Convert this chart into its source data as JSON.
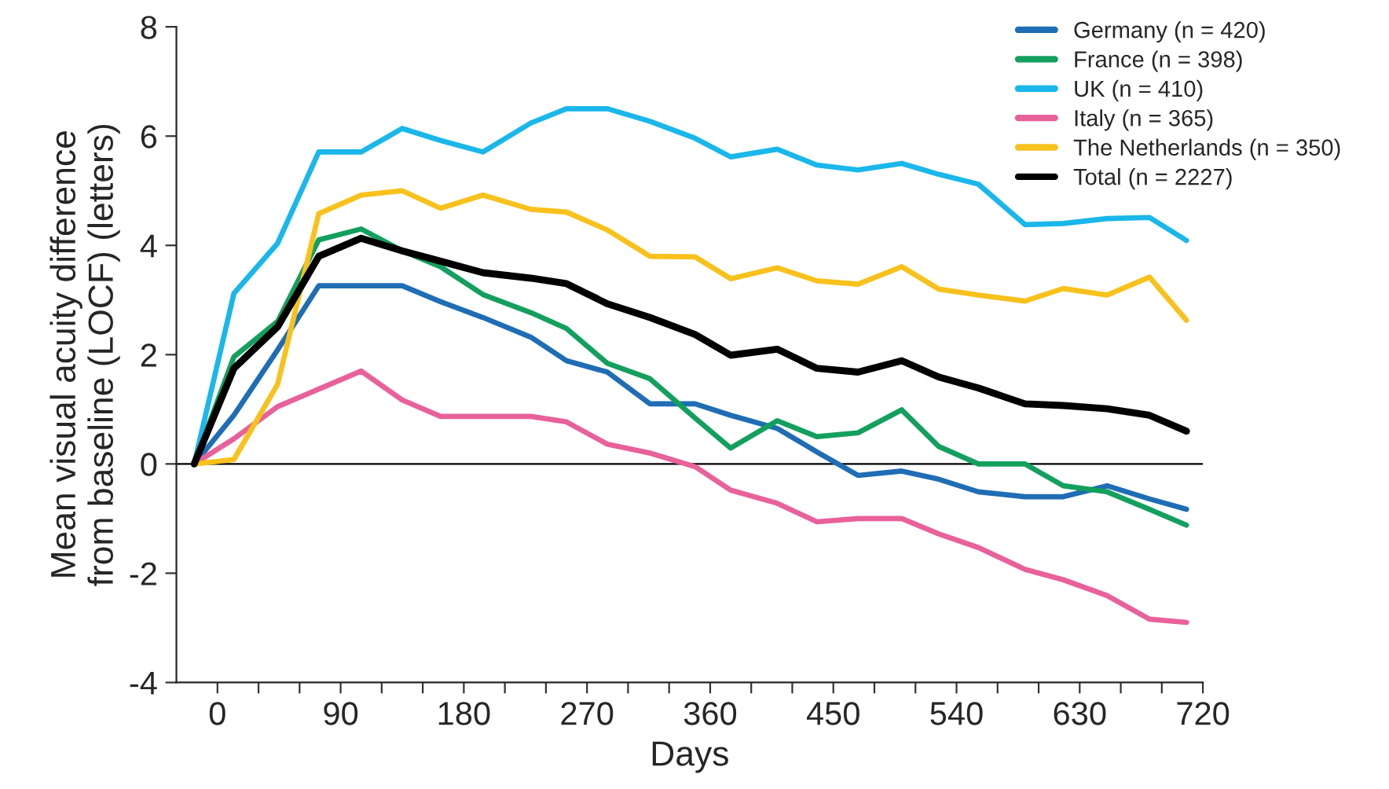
{
  "chart_data": {
    "type": "line",
    "xlabel": "Days",
    "ylabel": "Mean visual acuity difference\nfrom baseline (LOCF) (letters)",
    "x": [
      -17,
      12,
      44,
      74,
      105,
      135,
      163,
      194,
      229,
      255,
      285,
      316,
      349,
      375,
      409,
      438,
      468,
      500,
      527,
      556,
      590,
      618,
      650,
      681,
      708
    ],
    "series": [
      {
        "name": "Germany (n = 420)",
        "color": "#1f6db5",
        "values": [
          0,
          0.89,
          2.09,
          3.26,
          3.26,
          3.26,
          2.97,
          2.68,
          2.32,
          1.89,
          1.68,
          1.1,
          1.1,
          0.89,
          0.65,
          0.22,
          -0.21,
          -0.13,
          -0.28,
          -0.51,
          -0.6,
          -0.6,
          -0.4,
          -0.64,
          -0.83
        ]
      },
      {
        "name": "France (n = 398)",
        "color": "#13a05e",
        "values": [
          0,
          1.96,
          2.61,
          4.1,
          4.3,
          3.9,
          3.61,
          3.1,
          2.77,
          2.48,
          1.84,
          1.56,
          0.84,
          0.29,
          0.79,
          0.5,
          0.57,
          0.99,
          0.32,
          0,
          0,
          -0.4,
          -0.51,
          -0.83,
          -1.12
        ]
      },
      {
        "name": "UK (n = 410)",
        "color": "#1ab7ea",
        "values": [
          0,
          3.12,
          4.04,
          5.71,
          5.71,
          6.14,
          5.92,
          5.71,
          6.24,
          6.5,
          6.5,
          6.27,
          5.96,
          5.62,
          5.76,
          5.47,
          5.38,
          5.5,
          5.3,
          5.12,
          4.38,
          4.4,
          4.49,
          4.51,
          4.09
        ]
      },
      {
        "name": "Italy (n = 365)",
        "color": "#e8619b",
        "values": [
          0,
          0.46,
          1.05,
          1.37,
          1.7,
          1.17,
          0.87,
          0.87,
          0.87,
          0.77,
          0.36,
          0.2,
          -0.05,
          -0.48,
          -0.72,
          -1.06,
          -1.0,
          -1.0,
          -1.28,
          -1.53,
          -1.93,
          -2.12,
          -2.41,
          -2.84,
          -2.9
        ]
      },
      {
        "name": "The Netherlands (n = 350)",
        "color": "#f8c11c",
        "values": [
          0,
          0.08,
          1.46,
          4.58,
          4.92,
          5.0,
          4.68,
          4.92,
          4.66,
          4.61,
          4.28,
          3.8,
          3.79,
          3.39,
          3.59,
          3.35,
          3.29,
          3.61,
          3.2,
          3.09,
          2.98,
          3.21,
          3.09,
          3.42,
          2.63
        ]
      },
      {
        "name": "Total (n = 2227)",
        "color": "#000000",
        "values": [
          0,
          1.75,
          2.51,
          3.8,
          4.13,
          3.9,
          3.71,
          3.5,
          3.4,
          3.3,
          2.93,
          2.68,
          2.37,
          1.99,
          2.1,
          1.75,
          1.68,
          1.89,
          1.59,
          1.39,
          1.1,
          1.07,
          1.01,
          0.89,
          0.6
        ]
      }
    ],
    "xlim": [
      -30,
      720
    ],
    "xticks": [
      0,
      {
        "value": 30,
        "label": null
      },
      {
        "value": 60,
        "label": null
      },
      90,
      {
        "value": 120,
        "label": null
      },
      {
        "value": 150,
        "label": null
      },
      180,
      {
        "value": 210,
        "label": null
      },
      {
        "value": 240,
        "label": null
      },
      270,
      {
        "value": 300,
        "label": null
      },
      {
        "value": 330,
        "label": null
      },
      360,
      {
        "value": 390,
        "label": null
      },
      {
        "value": 420,
        "label": null
      },
      450,
      {
        "value": 480,
        "label": null
      },
      {
        "value": 510,
        "label": null
      },
      540,
      {
        "value": 570,
        "label": null
      },
      {
        "value": 600,
        "label": null
      },
      630,
      {
        "value": 660,
        "label": null
      },
      {
        "value": 690,
        "label": null
      },
      720
    ],
    "ylim": [
      -4,
      8
    ],
    "yticks": [
      {
        "value": -4,
        "label": "-4"
      },
      {
        "value": -2,
        "label": "-2"
      },
      0,
      2,
      4,
      6,
      8
    ],
    "ref_lines": [
      {
        "axis": "y",
        "value": 0,
        "label": null,
        "color": "#000000"
      }
    ],
    "grid": false,
    "legend": "top right",
    "marker": "none",
    "line_style": "solid"
  }
}
